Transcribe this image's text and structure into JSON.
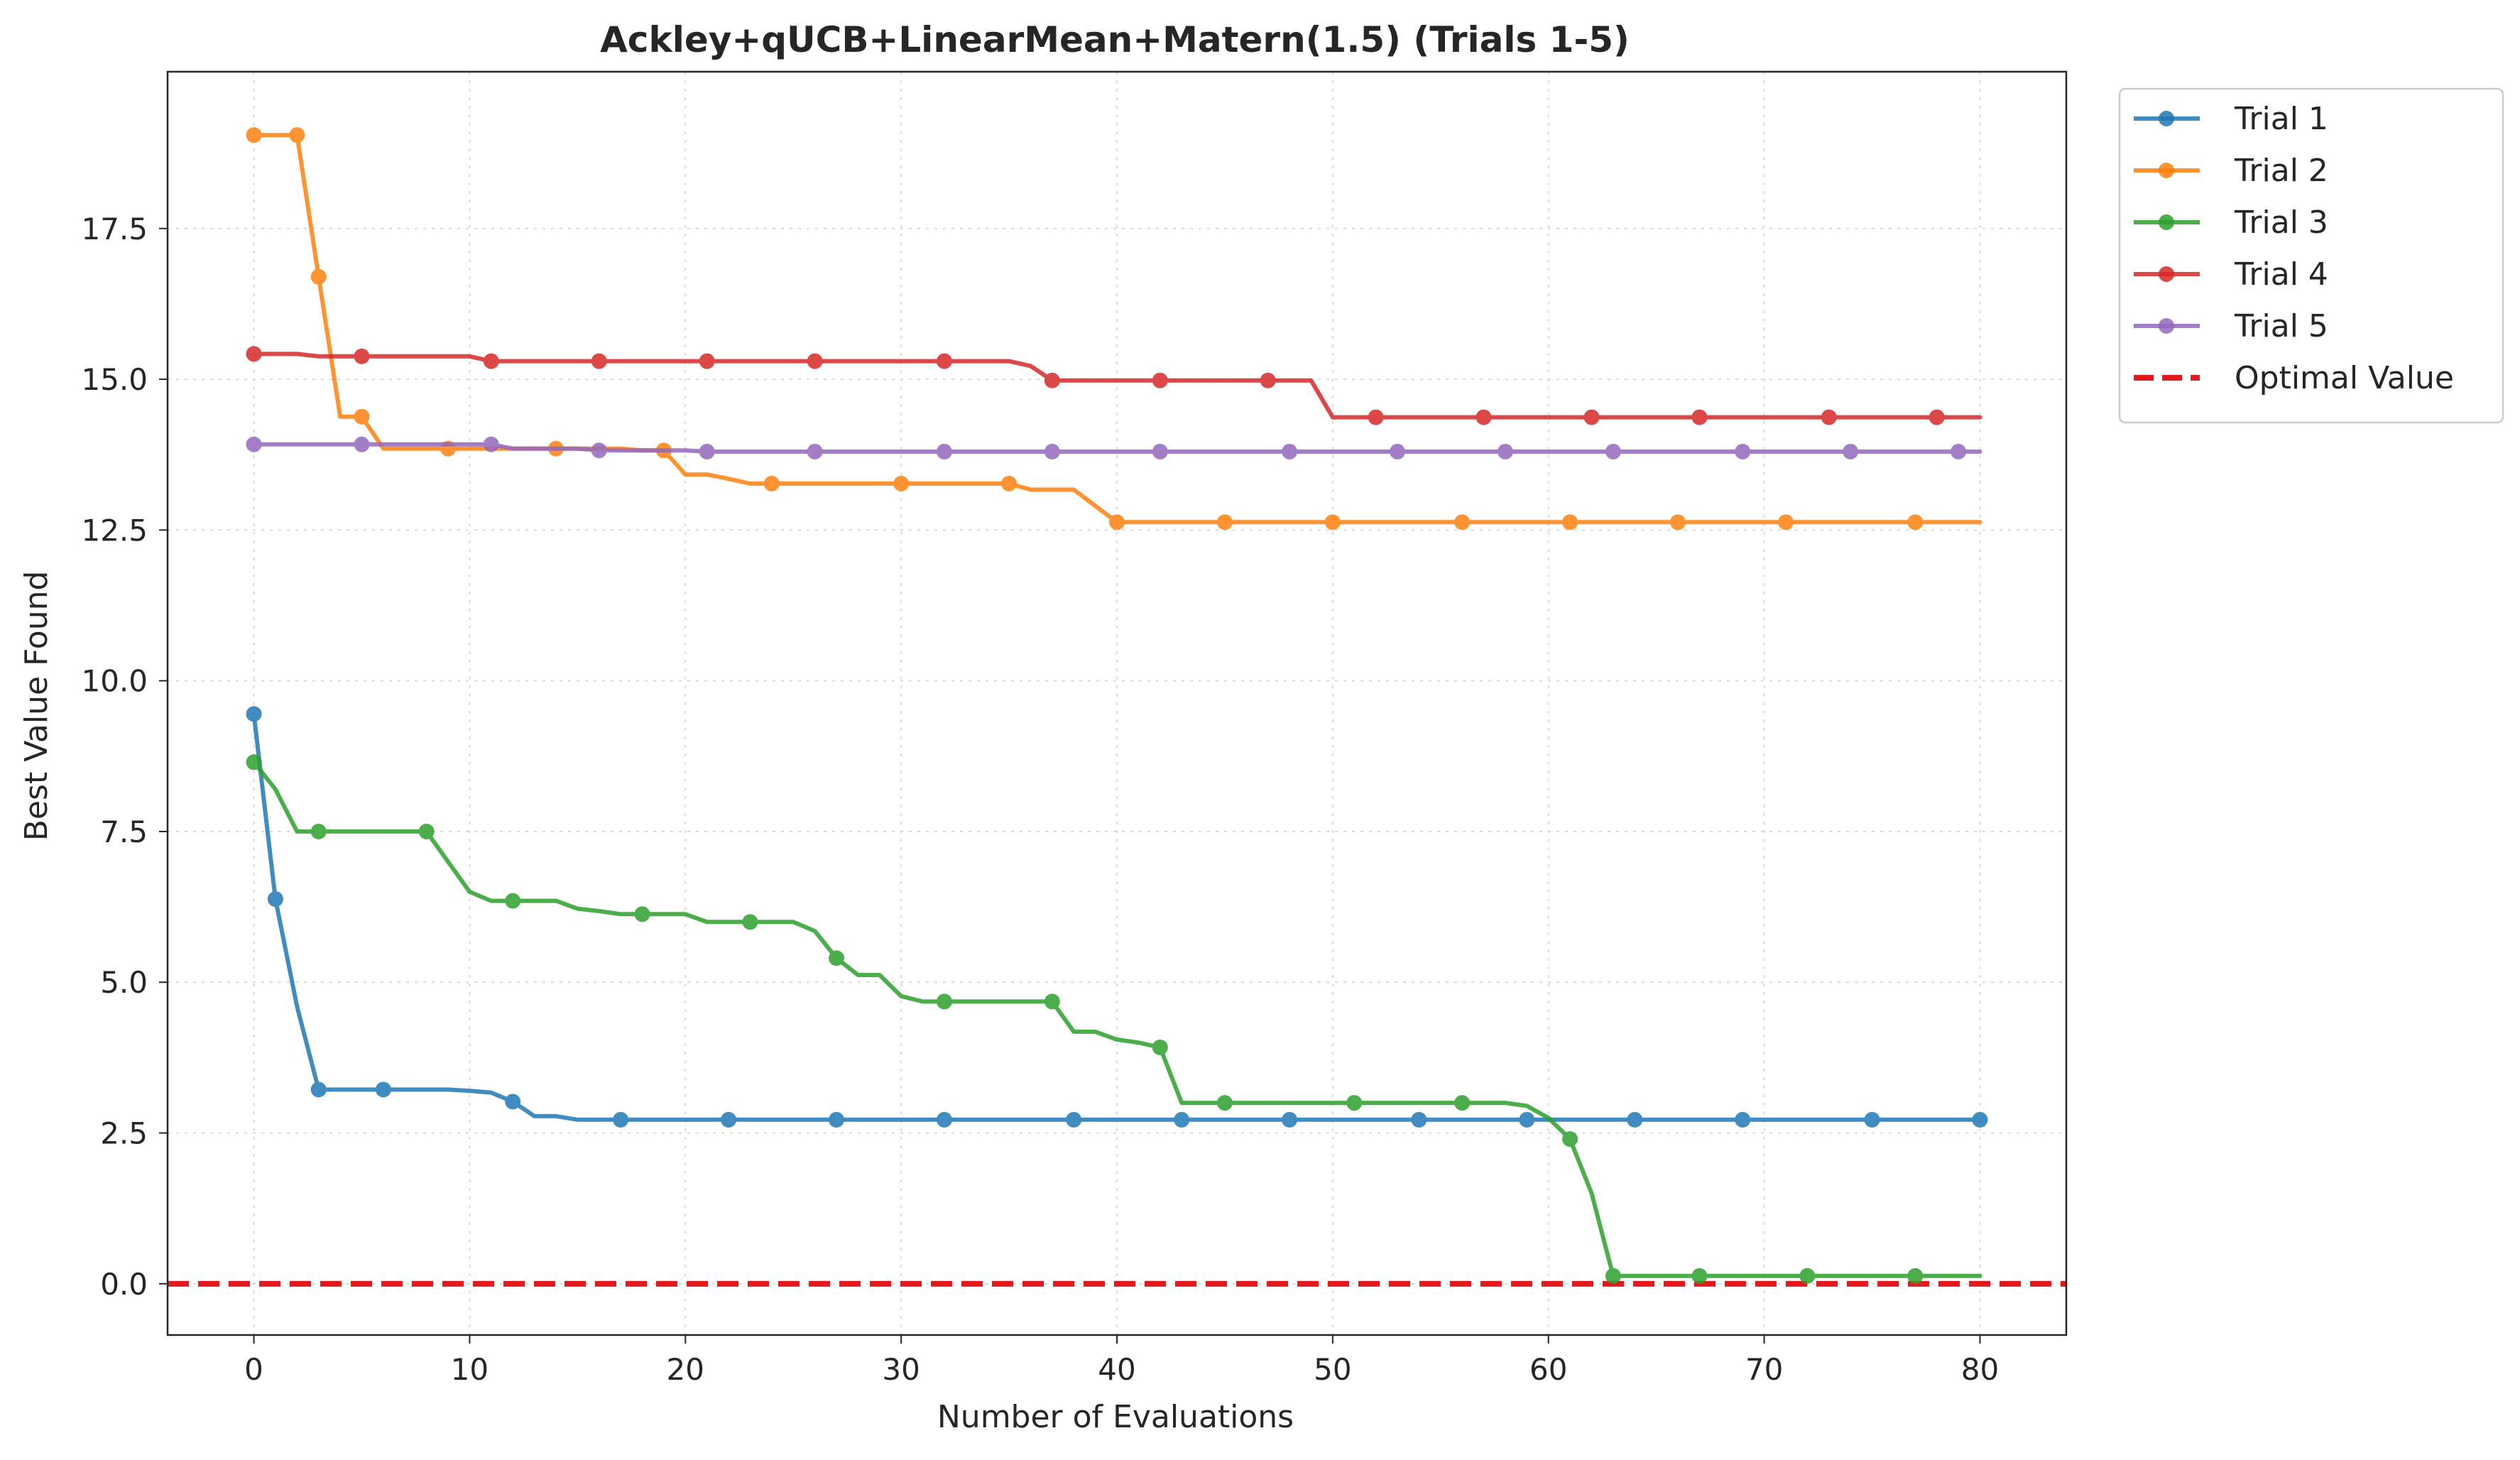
{
  "chart_data": {
    "type": "line",
    "title": "Ackley+qUCB+LinearMean+Matern(1.5) (Trials 1-5)",
    "xlabel": "Number of Evaluations",
    "ylabel": "Best Value Found",
    "xlim": [
      -4,
      84
    ],
    "ylim": [
      -0.85,
      20.1
    ],
    "xticks": [
      0,
      10,
      20,
      30,
      40,
      50,
      60,
      70,
      80
    ],
    "yticks": [
      0.0,
      2.5,
      5.0,
      7.5,
      10.0,
      12.5,
      15.0,
      17.5
    ],
    "xtick_labels": [
      "0",
      "10",
      "20",
      "30",
      "40",
      "50",
      "60",
      "70",
      "80"
    ],
    "ytick_labels": [
      "0.0",
      "2.5",
      "5.0",
      "7.5",
      "10.0",
      "12.5",
      "15.0",
      "17.5"
    ],
    "grid": true,
    "legend_position": "outside-top-right",
    "series": [
      {
        "name": "Trial 1",
        "color": "#1f77b4",
        "values": [
          9.45,
          6.38,
          4.6,
          3.22,
          3.22,
          3.22,
          3.22,
          3.22,
          3.22,
          3.22,
          3.2,
          3.17,
          3.02,
          2.78,
          2.78,
          2.72,
          2.72,
          2.72,
          2.72,
          2.72,
          2.72,
          2.72,
          2.72,
          2.72,
          2.72,
          2.72,
          2.72,
          2.72,
          2.72,
          2.72,
          2.72,
          2.72,
          2.72,
          2.72,
          2.72,
          2.72,
          2.72,
          2.72,
          2.72,
          2.72,
          2.72,
          2.72,
          2.72,
          2.72,
          2.72,
          2.72,
          2.72,
          2.72,
          2.72,
          2.72,
          2.72,
          2.72,
          2.72,
          2.72,
          2.72,
          2.72,
          2.72,
          2.72,
          2.72,
          2.72,
          2.72,
          2.72,
          2.72,
          2.72,
          2.72,
          2.72,
          2.72,
          2.72,
          2.72,
          2.72,
          2.72,
          2.72,
          2.72,
          2.72,
          2.72,
          2.72,
          2.72,
          2.72,
          2.72,
          2.72,
          2.72
        ],
        "markers": [
          0,
          1,
          3,
          6,
          12,
          17,
          22,
          27,
          32,
          38,
          43,
          48,
          54,
          59,
          64,
          69,
          75,
          80
        ]
      },
      {
        "name": "Trial 2",
        "color": "#ff7f0e",
        "values": [
          19.05,
          19.05,
          19.05,
          16.7,
          14.38,
          14.38,
          13.85,
          13.85,
          13.85,
          13.85,
          13.85,
          13.85,
          13.85,
          13.85,
          13.85,
          13.85,
          13.85,
          13.85,
          13.82,
          13.82,
          13.42,
          13.42,
          13.35,
          13.27,
          13.27,
          13.27,
          13.27,
          13.27,
          13.27,
          13.27,
          13.27,
          13.27,
          13.27,
          13.27,
          13.27,
          13.27,
          13.17,
          13.17,
          13.17,
          12.9,
          12.63,
          12.63,
          12.63,
          12.63,
          12.63,
          12.63,
          12.63,
          12.63,
          12.63,
          12.63,
          12.63,
          12.63,
          12.63,
          12.63,
          12.63,
          12.63,
          12.63,
          12.63,
          12.63,
          12.63,
          12.63,
          12.63,
          12.63,
          12.63,
          12.63,
          12.63,
          12.63,
          12.63,
          12.63,
          12.63,
          12.63,
          12.63,
          12.63,
          12.63,
          12.63,
          12.63,
          12.63,
          12.63,
          12.63,
          12.63,
          12.63
        ],
        "markers": [
          0,
          2,
          3,
          5,
          9,
          14,
          19,
          24,
          30,
          35,
          40,
          45,
          50,
          56,
          61,
          66,
          71,
          77
        ]
      },
      {
        "name": "Trial 3",
        "color": "#2ca02c",
        "values": [
          8.65,
          8.2,
          7.5,
          7.5,
          7.5,
          7.5,
          7.5,
          7.5,
          7.5,
          7.0,
          6.5,
          6.35,
          6.35,
          6.35,
          6.35,
          6.22,
          6.18,
          6.13,
          6.13,
          6.13,
          6.13,
          6.0,
          6.0,
          6.0,
          6.0,
          6.0,
          5.85,
          5.4,
          5.12,
          5.12,
          4.77,
          4.68,
          4.68,
          4.68,
          4.68,
          4.68,
          4.68,
          4.68,
          4.18,
          4.18,
          4.05,
          4.0,
          3.92,
          3.0,
          3.0,
          3.0,
          3.0,
          3.0,
          3.0,
          3.0,
          3.0,
          3.0,
          3.0,
          3.0,
          3.0,
          3.0,
          3.0,
          3.0,
          3.0,
          2.95,
          2.75,
          2.4,
          1.5,
          0.13,
          0.13,
          0.13,
          0.13,
          0.13,
          0.13,
          0.13,
          0.13,
          0.13,
          0.13,
          0.13,
          0.13,
          0.13,
          0.13,
          0.13,
          0.13,
          0.13,
          0.13
        ],
        "markers": [
          0,
          3,
          8,
          12,
          18,
          23,
          27,
          32,
          37,
          42,
          45,
          51,
          56,
          61,
          63,
          67,
          72,
          77
        ]
      },
      {
        "name": "Trial 4",
        "color": "#d62728",
        "values": [
          15.42,
          15.42,
          15.42,
          15.38,
          15.38,
          15.38,
          15.38,
          15.38,
          15.38,
          15.38,
          15.38,
          15.3,
          15.3,
          15.3,
          15.3,
          15.3,
          15.3,
          15.3,
          15.3,
          15.3,
          15.3,
          15.3,
          15.3,
          15.3,
          15.3,
          15.3,
          15.3,
          15.3,
          15.3,
          15.3,
          15.3,
          15.3,
          15.3,
          15.3,
          15.3,
          15.3,
          15.22,
          14.98,
          14.98,
          14.98,
          14.98,
          14.98,
          14.98,
          14.98,
          14.98,
          14.98,
          14.98,
          14.98,
          14.98,
          14.98,
          14.37,
          14.37,
          14.37,
          14.37,
          14.37,
          14.37,
          14.37,
          14.37,
          14.37,
          14.37,
          14.37,
          14.37,
          14.37,
          14.37,
          14.37,
          14.37,
          14.37,
          14.37,
          14.37,
          14.37,
          14.37,
          14.37,
          14.37,
          14.37,
          14.37,
          14.37,
          14.37,
          14.37,
          14.37,
          14.37,
          14.37
        ],
        "markers": [
          0,
          5,
          11,
          16,
          21,
          26,
          32,
          37,
          42,
          47,
          52,
          57,
          62,
          67,
          73,
          78
        ]
      },
      {
        "name": "Trial 5",
        "color": "#9467bd",
        "values": [
          13.92,
          13.92,
          13.92,
          13.92,
          13.92,
          13.92,
          13.92,
          13.92,
          13.92,
          13.92,
          13.92,
          13.92,
          13.85,
          13.85,
          13.85,
          13.85,
          13.82,
          13.82,
          13.82,
          13.82,
          13.82,
          13.8,
          13.8,
          13.8,
          13.8,
          13.8,
          13.8,
          13.8,
          13.8,
          13.8,
          13.8,
          13.8,
          13.8,
          13.8,
          13.8,
          13.8,
          13.8,
          13.8,
          13.8,
          13.8,
          13.8,
          13.8,
          13.8,
          13.8,
          13.8,
          13.8,
          13.8,
          13.8,
          13.8,
          13.8,
          13.8,
          13.8,
          13.8,
          13.8,
          13.8,
          13.8,
          13.8,
          13.8,
          13.8,
          13.8,
          13.8,
          13.8,
          13.8,
          13.8,
          13.8,
          13.8,
          13.8,
          13.8,
          13.8,
          13.8,
          13.8,
          13.8,
          13.8,
          13.8,
          13.8,
          13.8,
          13.8,
          13.8,
          13.8,
          13.8,
          13.8
        ],
        "markers": [
          0,
          5,
          11,
          16,
          21,
          26,
          32,
          37,
          42,
          48,
          53,
          58,
          63,
          69,
          74,
          79
        ]
      }
    ],
    "reference_line": {
      "name": "Optimal Value",
      "y": 0.0,
      "color": "#e31a1c",
      "style": "dashed"
    }
  }
}
